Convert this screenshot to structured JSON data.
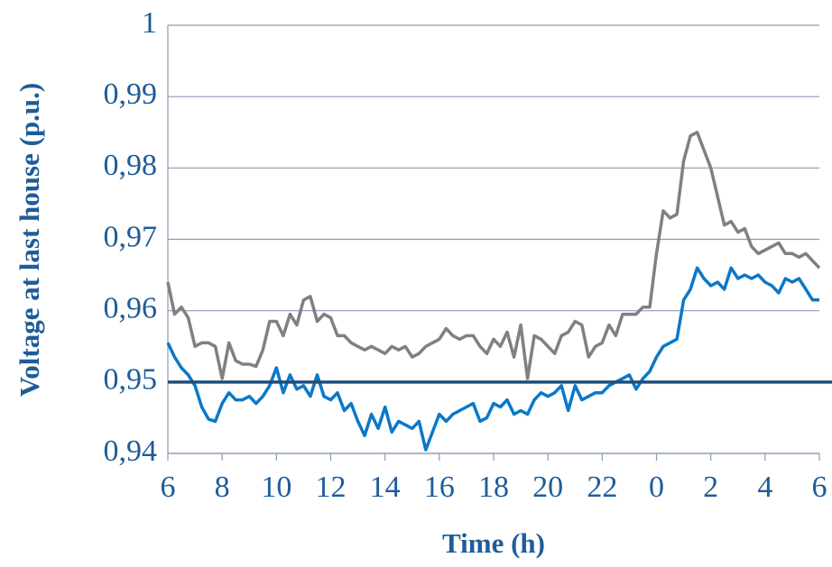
{
  "chart_data": {
    "type": "line",
    "x_label": "Time (h)",
    "y_label": "Voltage at last house (p.u.)",
    "xlim": [
      6,
      30
    ],
    "xticks": [
      6,
      8,
      10,
      12,
      14,
      16,
      18,
      20,
      22,
      {
        "value": 24,
        "label": "0"
      },
      {
        "value": 26,
        "label": "2"
      },
      {
        "value": 28,
        "label": "4"
      },
      {
        "value": 30,
        "label": "6"
      }
    ],
    "ylim": [
      0.94,
      1
    ],
    "yticks": [
      {
        "value": 0.94,
        "label": "0,94"
      },
      {
        "value": 0.95,
        "label": "0,95"
      },
      {
        "value": 0.96,
        "label": "0,96"
      },
      {
        "value": 0.97,
        "label": "0,97"
      },
      {
        "value": 0.98,
        "label": "0,98"
      },
      {
        "value": 0.99,
        "label": "0,99"
      },
      1
    ],
    "grid": true,
    "reference_line": {
      "value": 0.95,
      "color": "#1f4e79"
    },
    "x": [
      6,
      6.25,
      6.5,
      6.75,
      7,
      7.25,
      7.5,
      7.75,
      8,
      8.25,
      8.5,
      8.75,
      9,
      9.25,
      9.5,
      9.75,
      10,
      10.25,
      10.5,
      10.75,
      11,
      11.25,
      11.5,
      11.75,
      12,
      12.25,
      12.5,
      12.75,
      13,
      13.25,
      13.5,
      13.75,
      14,
      14.25,
      14.5,
      14.75,
      15,
      15.25,
      15.5,
      15.75,
      16,
      16.25,
      16.5,
      16.75,
      17,
      17.25,
      17.5,
      17.75,
      18,
      18.25,
      18.5,
      18.75,
      19,
      19.25,
      19.5,
      19.75,
      20,
      20.25,
      20.5,
      20.75,
      21,
      21.25,
      21.5,
      21.75,
      22,
      22.25,
      22.5,
      22.75,
      23,
      23.25,
      23.5,
      23.75,
      24,
      24.25,
      24.5,
      24.75,
      25,
      25.25,
      25.5,
      25.75,
      26,
      26.25,
      26.5,
      26.75,
      27,
      27.25,
      27.5,
      27.75,
      28,
      28.25,
      28.5,
      28.75,
      29,
      29.25,
      29.5,
      29.75,
      30
    ],
    "series": [
      {
        "color": "#808080",
        "values": [
          0.964,
          0.9595,
          0.9605,
          0.959,
          0.955,
          0.9555,
          0.9555,
          0.955,
          0.9505,
          0.9555,
          0.953,
          0.9525,
          0.9525,
          0.9522,
          0.9545,
          0.9585,
          0.9585,
          0.9565,
          0.9595,
          0.958,
          0.9615,
          0.962,
          0.9585,
          0.9595,
          0.959,
          0.9565,
          0.9565,
          0.9555,
          0.955,
          0.9545,
          0.955,
          0.9545,
          0.954,
          0.955,
          0.9545,
          0.955,
          0.9535,
          0.954,
          0.955,
          0.9555,
          0.956,
          0.9575,
          0.9565,
          0.956,
          0.9565,
          0.9565,
          0.955,
          0.954,
          0.956,
          0.955,
          0.957,
          0.9535,
          0.958,
          0.9505,
          0.9565,
          0.956,
          0.955,
          0.954,
          0.9565,
          0.957,
          0.9585,
          0.958,
          0.9535,
          0.955,
          0.9555,
          0.958,
          0.9565,
          0.9595,
          0.9595,
          0.9595,
          0.9605,
          0.9605,
          0.968,
          0.974,
          0.973,
          0.9735,
          0.981,
          0.9845,
          0.985,
          0.9825,
          0.98,
          0.976,
          0.972,
          0.9725,
          0.971,
          0.9715,
          0.969,
          0.968,
          0.9685,
          0.969,
          0.9695,
          0.968,
          0.968,
          0.9675,
          0.968,
          0.967,
          0.966
        ]
      },
      {
        "color": "#0b78c9",
        "values": [
          0.9555,
          0.9535,
          0.952,
          0.951,
          0.9495,
          0.9465,
          0.9448,
          0.9445,
          0.947,
          0.9485,
          0.9475,
          0.9475,
          0.948,
          0.947,
          0.948,
          0.9495,
          0.952,
          0.9485,
          0.951,
          0.949,
          0.9495,
          0.948,
          0.951,
          0.948,
          0.9475,
          0.9485,
          0.946,
          0.947,
          0.9445,
          0.9425,
          0.9455,
          0.9435,
          0.9465,
          0.943,
          0.9445,
          0.944,
          0.9435,
          0.9445,
          0.9405,
          0.943,
          0.9455,
          0.9445,
          0.9455,
          0.946,
          0.9465,
          0.947,
          0.9445,
          0.945,
          0.947,
          0.9465,
          0.9475,
          0.9455,
          0.946,
          0.9455,
          0.9475,
          0.9485,
          0.948,
          0.9485,
          0.9495,
          0.946,
          0.9495,
          0.9475,
          0.948,
          0.9485,
          0.9485,
          0.9495,
          0.95,
          0.9505,
          0.951,
          0.949,
          0.9505,
          0.9515,
          0.9535,
          0.955,
          0.9555,
          0.956,
          0.9615,
          0.963,
          0.966,
          0.9645,
          0.9635,
          0.964,
          0.963,
          0.966,
          0.9645,
          0.965,
          0.9645,
          0.965,
          0.964,
          0.9635,
          0.9625,
          0.9645,
          0.964,
          0.9645,
          0.963,
          0.9615,
          0.9615
        ]
      }
    ]
  }
}
